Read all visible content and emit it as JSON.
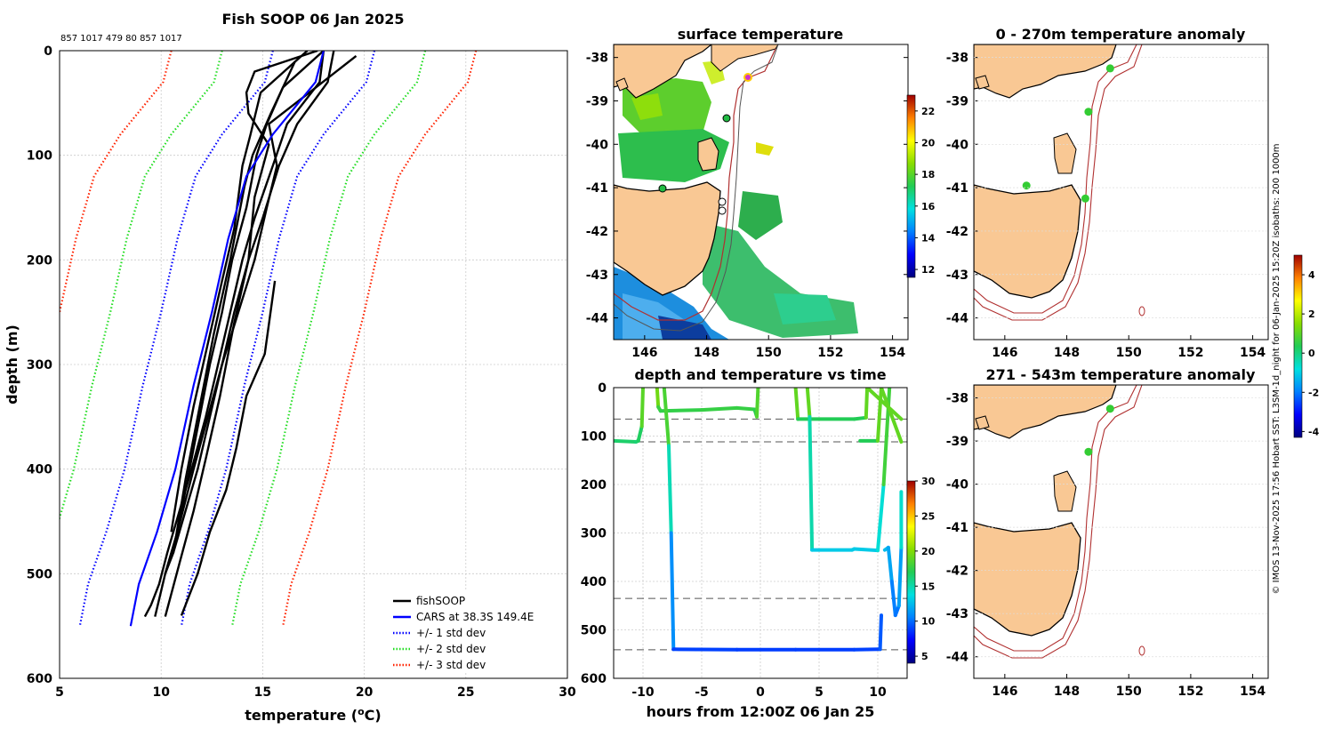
{
  "chart_data": [
    {
      "type": "line",
      "title": "Fish SOOP 06 Jan 2025",
      "subtitle": "857 1017 479 80 857 1017",
      "xlabel": "temperature (",
      "xlabel_sup": "o",
      "xlabel_unit": "C)",
      "ylabel": "depth (m)",
      "xlim": [
        5,
        30
      ],
      "ylim": [
        0,
        600
      ],
      "xticks": [
        5,
        10,
        15,
        20,
        25,
        30
      ],
      "yticks": [
        0,
        100,
        200,
        300,
        400,
        500,
        600
      ],
      "legend": [
        {
          "label": "fishSOOP",
          "color": "#000000",
          "style": "solid"
        },
        {
          "label": "CARS at 38.3S 149.4E",
          "color": "#0000ff",
          "style": "solid"
        },
        {
          "label": "+/- 1 std dev",
          "color": "#0000ff",
          "style": "dotted"
        },
        {
          "label": "+/- 2 std dev",
          "color": "#22dd22",
          "style": "dotted"
        },
        {
          "label": "+/- 3 std dev",
          "color": "#ff2200",
          "style": "dotted"
        }
      ],
      "cars_mean": {
        "temps": [
          18.0,
          17.6,
          15.5,
          14.2,
          13.3,
          12.5,
          11.6,
          10.7,
          9.8,
          8.9,
          8.5
        ],
        "depths": [
          0,
          30,
          80,
          120,
          180,
          250,
          320,
          400,
          460,
          510,
          550
        ]
      },
      "std_offsets": [
        2.5,
        5.0,
        7.5
      ],
      "fishsoop": [
        {
          "temps": [
            18.0,
            17.8,
            16.2,
            15.5,
            14.6,
            14.0,
            13.4,
            12.8,
            12.2,
            11.5,
            10.9,
            10.3,
            9.9,
            9.5,
            9.2
          ],
          "depths": [
            0,
            30,
            70,
            110,
            160,
            200,
            250,
            300,
            350,
            400,
            440,
            480,
            510,
            530,
            541
          ]
        },
        {
          "temps": [
            18.5,
            18.2,
            16.7,
            15.8,
            15.0,
            14.3,
            13.6,
            13.0,
            12.4,
            11.8,
            11.2,
            10.6,
            10.2
          ],
          "depths": [
            0,
            30,
            70,
            110,
            160,
            200,
            250,
            300,
            350,
            400,
            440,
            480,
            500
          ]
        },
        {
          "temps": [
            19.6,
            17.3,
            15.3,
            15.7,
            15.2,
            14.6,
            13.8,
            13.0,
            12.3,
            11.6,
            10.8,
            10.2,
            9.7
          ],
          "depths": [
            5,
            40,
            70,
            110,
            150,
            200,
            250,
            300,
            350,
            400,
            460,
            500,
            541
          ]
        },
        {
          "temps": [
            17.7,
            14.6,
            14.2,
            14.3,
            15.3,
            14.6,
            14.3,
            13.6,
            12.9,
            12.2,
            11.6,
            10.9,
            10.2
          ],
          "depths": [
            0,
            20,
            40,
            60,
            90,
            140,
            200,
            260,
            330,
            390,
            440,
            490,
            541
          ]
        },
        {
          "temps": [
            18.0,
            16.0,
            15.2,
            14.7,
            14.2,
            13.5,
            13.0,
            12.4,
            11.8,
            11.3,
            10.8,
            10.2
          ],
          "depths": [
            0,
            35,
            70,
            100,
            150,
            200,
            250,
            300,
            360,
            410,
            460,
            500
          ]
        },
        {
          "temps": [
            17.2,
            14.9,
            14.4,
            14.0,
            13.6,
            13.0,
            12.3,
            11.6,
            11.0,
            10.5
          ],
          "depths": [
            0,
            40,
            80,
            110,
            170,
            220,
            280,
            340,
            400,
            460
          ]
        },
        {
          "temps": [
            16.6,
            15.4,
            14.5,
            14.1,
            13.4,
            12.6,
            11.9,
            11.2,
            10.6
          ],
          "depths": [
            10,
            60,
            100,
            130,
            200,
            270,
            340,
            410,
            480
          ]
        },
        {
          "temps": [
            15.6,
            15.1,
            14.2,
            13.7,
            13.2,
            12.4,
            11.8,
            11.0
          ],
          "depths": [
            220,
            290,
            330,
            380,
            420,
            460,
            500,
            540
          ]
        }
      ]
    },
    {
      "type": "scatter",
      "title": "depth and temperature vs time",
      "xlabel": "hours from 12:00Z 06 Jan 25",
      "xlim": [
        -12.5,
        12.5
      ],
      "ylim": [
        0,
        600
      ],
      "xticks": [
        -10,
        -5,
        0,
        5,
        10
      ],
      "yticks": [
        0,
        100,
        200,
        300,
        400,
        500,
        600
      ],
      "colorbar": {
        "range": [
          4,
          30
        ],
        "ticks": [
          5,
          10,
          15,
          20,
          25,
          30
        ]
      },
      "traces": [
        {
          "hours": [
            -12.5,
            -10.6,
            -10.4,
            -10.1,
            -10.0
          ],
          "depths": [
            110,
            112,
            110,
            80,
            0
          ],
          "temps": [
            16.5,
            16.5,
            16.0,
            17.5,
            20.0
          ]
        },
        {
          "hours": [
            -8.8,
            -8.7,
            -8.5,
            -5.0,
            -2.0,
            -0.5,
            -0.3,
            -0.2
          ],
          "depths": [
            0,
            40,
            48,
            46,
            42,
            45,
            60,
            0
          ],
          "temps": [
            21,
            18,
            17.5,
            17.5,
            17.8,
            17.5,
            17.0,
            20
          ]
        },
        {
          "hours": [
            -8.2,
            -7.8,
            -7.6,
            -7.4,
            -2.0,
            3.0,
            8.0,
            10.2,
            10.3
          ],
          "depths": [
            0,
            120,
            300,
            540,
            541,
            541,
            541,
            540,
            470
          ],
          "temps": [
            20,
            16.5,
            13,
            9,
            8.8,
            8.8,
            8.8,
            9,
            10
          ]
        },
        {
          "hours": [
            3.0,
            3.2,
            8.0,
            9.0,
            9.1,
            12.0
          ],
          "depths": [
            0,
            65,
            65,
            62,
            0,
            65
          ],
          "temps": [
            21,
            17,
            17,
            17,
            21,
            17
          ]
        },
        {
          "hours": [
            4.0,
            4.2,
            4.4,
            7.8,
            8.0,
            10.0,
            10.5,
            11.0
          ],
          "depths": [
            0,
            60,
            335,
            335,
            333,
            336,
            200,
            0
          ],
          "temps": [
            21,
            17,
            13,
            13,
            13,
            13,
            15,
            21
          ]
        },
        {
          "hours": [
            8.5,
            10.0,
            10.3,
            12.0
          ],
          "depths": [
            110,
            110,
            0,
            112
          ],
          "temps": [
            17,
            17,
            21,
            17
          ]
        },
        {
          "hours": [
            10.6,
            10.9,
            11.2,
            11.5,
            11.8,
            12.0,
            12.0
          ],
          "depths": [
            335,
            330,
            400,
            470,
            450,
            330,
            215
          ],
          "temps": [
            12.5,
            12.5,
            11.0,
            10.0,
            10.5,
            12.5,
            16
          ]
        }
      ],
      "reference_depths": [
        65,
        112,
        435,
        541
      ]
    },
    {
      "type": "map",
      "title": "surface temperature",
      "lon_range": [
        145,
        154.5
      ],
      "lat_range": [
        -44.5,
        -37.7
      ],
      "xticks": [
        146,
        148,
        150,
        152,
        154
      ],
      "yticks": [
        -38,
        -39,
        -40,
        -41,
        -42,
        -43,
        -44
      ],
      "colorbar": {
        "range": [
          11.5,
          23
        ],
        "ticks": [
          12,
          14,
          16,
          18,
          20,
          22
        ]
      }
    },
    {
      "type": "map",
      "title": "0 - 270m temperature anomaly",
      "lon_range": [
        145,
        154.5
      ],
      "lat_range": [
        -44.5,
        -37.7
      ],
      "xticks": [
        146,
        148,
        150,
        152,
        154
      ],
      "yticks": [
        -38,
        -39,
        -40,
        -41,
        -42,
        -43,
        -44
      ],
      "points": [
        {
          "lon": 149.4,
          "lat": -38.25
        },
        {
          "lon": 148.7,
          "lat": -39.25
        },
        {
          "lon": 146.7,
          "lat": -40.95
        },
        {
          "lon": 148.6,
          "lat": -41.25
        }
      ]
    },
    {
      "type": "map",
      "title": "271 - 543m temperature anomaly",
      "lon_range": [
        145,
        154.5
      ],
      "lat_range": [
        -44.5,
        -37.7
      ],
      "xticks": [
        146,
        148,
        150,
        152,
        154
      ],
      "yticks": [
        -38,
        -39,
        -40,
        -41,
        -42,
        -43,
        -44
      ],
      "colorbar": {
        "range": [
          -4.3,
          5
        ],
        "ticks": [
          -4,
          -2,
          0,
          2,
          4
        ]
      },
      "points": [
        {
          "lon": 149.4,
          "lat": -38.25
        },
        {
          "lon": 148.7,
          "lat": -39.25
        }
      ]
    }
  ],
  "caption": "© IMOS 13-Nov-2025 17:56 Hobart SST: L3SM-1d_night for 06-Jan-2025 15:20Z isobaths: 200  1000m"
}
